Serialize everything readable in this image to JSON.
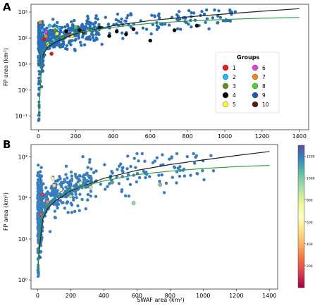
{
  "chart_data": [
    {
      "panel_label": "A",
      "type": "scatter",
      "xlabel": "",
      "ylabel": "FP area (km²)",
      "xlim": [
        -40,
        1450
      ],
      "ylim": [
        0.03,
        2000
      ],
      "yscale": "log",
      "xticks": [
        0,
        200,
        400,
        600,
        800,
        1000,
        1200,
        1400
      ],
      "yticks": [
        {
          "v": 0.1,
          "label": "10⁻¹"
        },
        {
          "v": 1,
          "label": "10⁰"
        },
        {
          "v": 10,
          "label": "10¹"
        },
        {
          "v": 100,
          "label": "10²"
        },
        {
          "v": 1000,
          "label": "10³"
        }
      ],
      "legend": {
        "title": "Groups",
        "placement": "right",
        "entries": [
          {
            "label": "1",
            "color": "#e41a1c"
          },
          {
            "label": "2",
            "color": "#29b6f6"
          },
          {
            "label": "3",
            "color": "#5a9a1e"
          },
          {
            "label": "4",
            "color": "#000000"
          },
          {
            "label": "5",
            "color": "#f5f542"
          },
          {
            "label": "6",
            "color": "#e040e0"
          },
          {
            "label": "7",
            "color": "#f08c1c"
          },
          {
            "label": "8",
            "color": "#4cd137"
          },
          {
            "label": "9",
            "color": "#1f5fa8"
          },
          {
            "label": "10",
            "color": "#5a1a10"
          }
        ]
      },
      "highlight_points": [
        {
          "x": 330,
          "y": 250,
          "g": 4
        },
        {
          "x": 420,
          "y": 180,
          "g": 4
        },
        {
          "x": 600,
          "y": 80,
          "g": 4
        },
        {
          "x": 470,
          "y": 140,
          "g": 4
        },
        {
          "x": 730,
          "y": 200,
          "g": 4
        },
        {
          "x": 380,
          "y": 120,
          "g": 4
        },
        {
          "x": 220,
          "y": 200,
          "g": 4
        },
        {
          "x": 850,
          "y": 300,
          "g": 4
        },
        {
          "x": 150,
          "y": 180,
          "g": 4
        },
        {
          "x": 510,
          "y": 220,
          "g": 4
        },
        {
          "x": 160,
          "y": 130,
          "g": 1
        },
        {
          "x": 30,
          "y": 90,
          "g": 1
        },
        {
          "x": 70,
          "y": 25,
          "g": 1
        },
        {
          "x": 180,
          "y": 120,
          "g": 5
        },
        {
          "x": 100,
          "y": 150,
          "g": 5
        },
        {
          "x": 50,
          "y": 60,
          "g": 5
        },
        {
          "x": 20,
          "y": 200,
          "g": 2
        },
        {
          "x": 60,
          "y": 300,
          "g": 2
        },
        {
          "x": 110,
          "y": 250,
          "g": 2
        },
        {
          "x": 90,
          "y": 200,
          "g": 3
        },
        {
          "x": 130,
          "y": 100,
          "g": 3
        },
        {
          "x": 280,
          "y": 200,
          "g": 3
        },
        {
          "x": 40,
          "y": 170,
          "g": 6
        },
        {
          "x": 10,
          "y": 400,
          "g": 7
        },
        {
          "x": 40,
          "y": 120,
          "g": 7
        },
        {
          "x": 200,
          "y": 260,
          "g": 8
        },
        {
          "x": 240,
          "y": 170,
          "g": 10
        }
      ],
      "fit_lines": [
        {
          "color": "#222222",
          "points": [
            [
              0,
              0.1
            ],
            [
              20,
              20
            ],
            [
              50,
              45
            ],
            [
              100,
              75
            ],
            [
              200,
              150
            ],
            [
              400,
              300
            ],
            [
              600,
              470
            ],
            [
              800,
              650
            ],
            [
              1000,
              840
            ],
            [
              1200,
              1080
            ],
            [
              1400,
              1350
            ]
          ]
        },
        {
          "color": "#2e9e44",
          "points": [
            [
              0,
              0.1
            ],
            [
              20,
              30
            ],
            [
              50,
              60
            ],
            [
              100,
              100
            ],
            [
              200,
              160
            ],
            [
              400,
              260
            ],
            [
              600,
              370
            ],
            [
              800,
              450
            ],
            [
              1000,
              520
            ],
            [
              1200,
              580
            ],
            [
              1400,
              620
            ]
          ]
        }
      ]
    },
    {
      "panel_label": "B",
      "type": "scatter",
      "xlabel": "SWAF area (km²)",
      "ylabel": "FP area (km²)",
      "xlim": [
        -40,
        1450
      ],
      "ylim": [
        0.6,
        2000
      ],
      "yscale": "log",
      "xticks": [
        0,
        200,
        400,
        600,
        800,
        1000,
        1200,
        1400
      ],
      "yticks": [
        {
          "v": 1,
          "label": "10⁰"
        },
        {
          "v": 10,
          "label": "10¹"
        },
        {
          "v": 100,
          "label": "10²"
        },
        {
          "v": 1000,
          "label": "10³"
        }
      ],
      "colorbar": {
        "ticks": [
          200,
          400,
          600,
          800,
          1000,
          1200
        ],
        "range": [
          0,
          1300
        ],
        "colors": [
          "#9e0142",
          "#d53e4f",
          "#f46d43",
          "#fdae61",
          "#fee08b",
          "#ffffbf",
          "#e6f598",
          "#abdda4",
          "#66c2a5",
          "#3288bd",
          "#5e4fa2"
        ]
      },
      "highlight_points": [
        {
          "x": 30,
          "y": 120,
          "c": 150
        },
        {
          "x": 60,
          "y": 80,
          "c": 300
        },
        {
          "x": 100,
          "y": 200,
          "c": 500
        },
        {
          "x": 140,
          "y": 160,
          "c": 700
        },
        {
          "x": 200,
          "y": 110,
          "c": 900
        },
        {
          "x": 20,
          "y": 40,
          "c": 200
        },
        {
          "x": 260,
          "y": 230,
          "c": 800
        },
        {
          "x": 580,
          "y": 75,
          "c": 950
        },
        {
          "x": 740,
          "y": 210,
          "c": 1000
        },
        {
          "x": 90,
          "y": 300,
          "c": 600
        },
        {
          "x": 320,
          "y": 180,
          "c": 850
        },
        {
          "x": 450,
          "y": 240,
          "c": 1100
        }
      ],
      "fit_lines": [
        {
          "color": "#222222",
          "points": [
            [
              0,
              1.5
            ],
            [
              10,
              5
            ],
            [
              30,
              30
            ],
            [
              60,
              55
            ],
            [
              100,
              80
            ],
            [
              200,
              150
            ],
            [
              400,
              300
            ],
            [
              600,
              470
            ],
            [
              800,
              650
            ],
            [
              1000,
              840
            ],
            [
              1200,
              1080
            ],
            [
              1400,
              1350
            ]
          ]
        },
        {
          "color": "#2e9e44",
          "points": [
            [
              0,
              1.5
            ],
            [
              10,
              10
            ],
            [
              30,
              40
            ],
            [
              60,
              70
            ],
            [
              100,
              100
            ],
            [
              200,
              160
            ],
            [
              400,
              260
            ],
            [
              600,
              370
            ],
            [
              800,
              450
            ],
            [
              1000,
              520
            ],
            [
              1200,
              580
            ],
            [
              1400,
              620
            ]
          ]
        }
      ]
    }
  ]
}
